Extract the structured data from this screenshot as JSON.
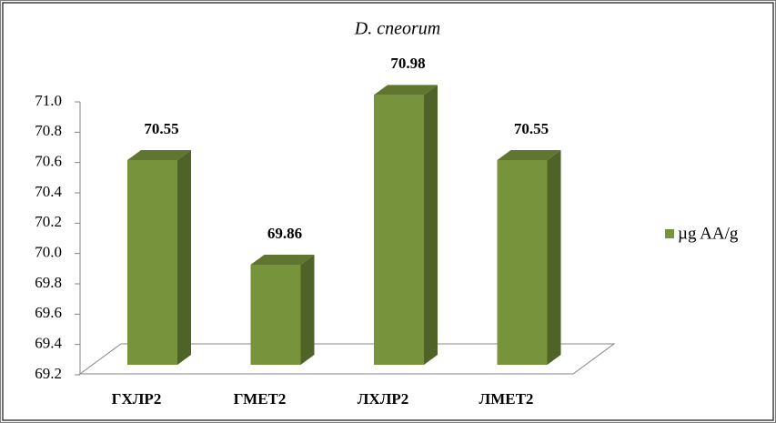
{
  "chart_data": {
    "type": "bar3d",
    "title": "D. cneorum",
    "categories": [
      "ГХЛР2",
      "ГМЕТ2",
      "ЛХЛР2",
      "ЛМЕТ2"
    ],
    "series": [
      {
        "name": "µg AA/g",
        "color": "#77933c",
        "values": [
          70.55,
          69.86,
          70.98,
          70.55
        ]
      }
    ],
    "ylim": [
      69.2,
      71.0
    ],
    "yticks": [
      69.2,
      69.4,
      69.6,
      69.8,
      {
        "value": 70.0,
        "label": "70.0"
      },
      70.2,
      70.4,
      70.6,
      70.8,
      {
        "value": 71.0,
        "label": "71.0"
      }
    ],
    "grid": false,
    "legend": "right"
  }
}
